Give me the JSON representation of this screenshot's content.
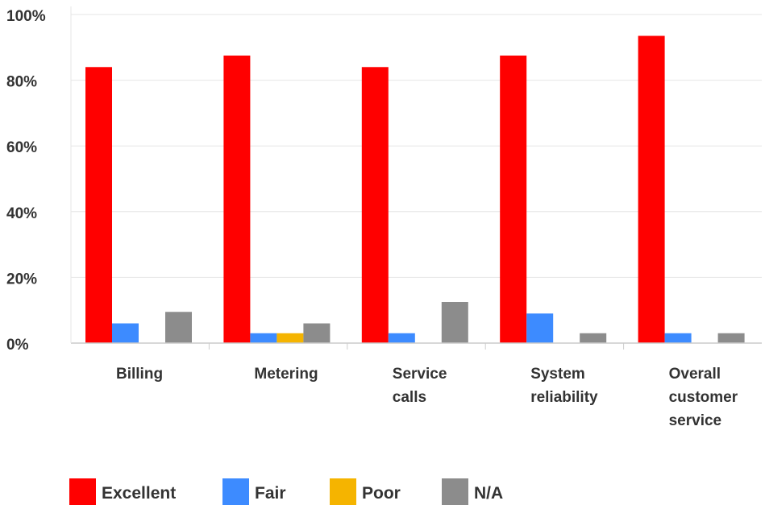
{
  "chart_data": {
    "type": "bar",
    "categories": [
      [
        "Billing"
      ],
      [
        "Metering"
      ],
      [
        "Service",
        "calls"
      ],
      [
        "System",
        "reliability"
      ],
      [
        "Overall",
        "customer",
        "service"
      ]
    ],
    "series": [
      {
        "name": "Excellent",
        "color": "#ff0000",
        "values": [
          84,
          87.5,
          84,
          87.5,
          93.5
        ]
      },
      {
        "name": "Fair",
        "color": "#3d8bff",
        "values": [
          6,
          3,
          3,
          9,
          3
        ]
      },
      {
        "name": "Poor",
        "color": "#f5b400",
        "values": [
          0,
          3,
          0,
          0,
          0
        ]
      },
      {
        "name": "N/A",
        "color": "#8c8c8c",
        "values": [
          9.5,
          6,
          12.5,
          3,
          3
        ]
      }
    ],
    "y_ticks": [
      "0%",
      "20%",
      "40%",
      "60%",
      "80%",
      "100%"
    ],
    "ylim": [
      0,
      100
    ],
    "grid": true,
    "legend_position": "bottom-left",
    "title": "",
    "xlabel": "",
    "ylabel": ""
  }
}
